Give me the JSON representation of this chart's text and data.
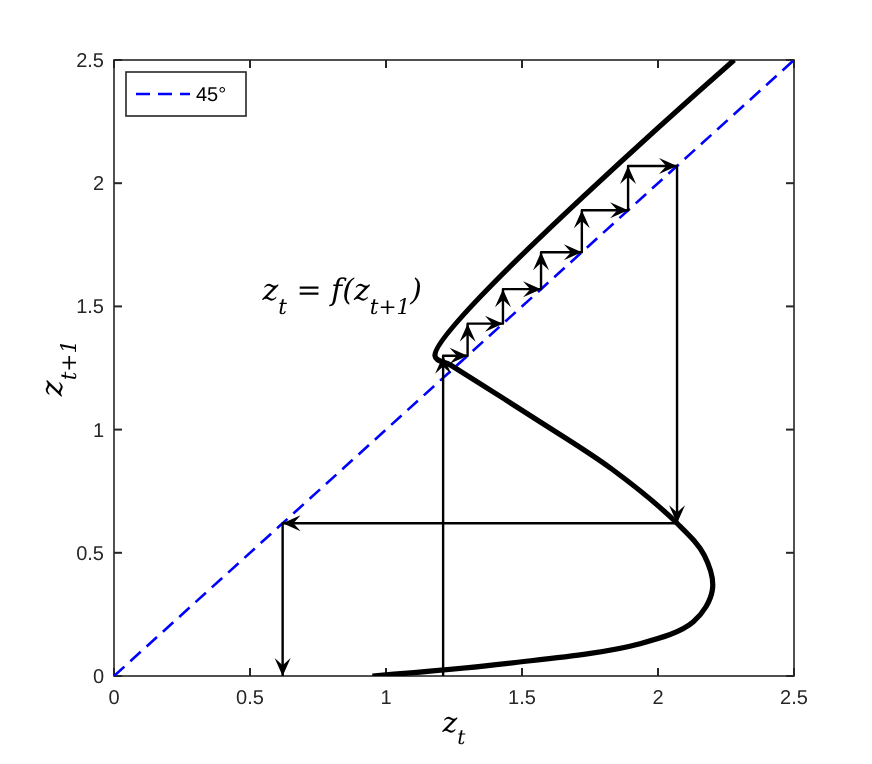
{
  "chart_data": {
    "type": "line",
    "xlabel": "z$_{t}$",
    "ylabel": "z$_{t+1}$",
    "xlim": [
      0,
      2.5
    ],
    "ylim": [
      0,
      2.5
    ],
    "xticks": [
      0,
      0.5,
      1,
      1.5,
      2,
      2.5
    ],
    "yticks": [
      0,
      0.5,
      1,
      1.5,
      2,
      2.5
    ],
    "legend": "top left",
    "grid": false,
    "series": [
      {
        "name": "45°",
        "color": "#0000ff",
        "line_style": "dashed",
        "x": [
          0,
          2.5
        ],
        "values": [
          0,
          2.5
        ]
      },
      {
        "color": "#000000",
        "line_style": "solid",
        "x": [
          0.95,
          1.44,
          1.93,
          2.13,
          2.2,
          2.17,
          2.07,
          1.83,
          1.54,
          1.24,
          1.18,
          2.28
        ],
        "values": [
          0,
          0.05,
          0.13,
          0.22,
          0.35,
          0.49,
          0.62,
          0.84,
          1.05,
          1.26,
          1.3,
          2.5
        ]
      },
      {
        "color": "#000000",
        "line_style": "solid",
        "x": [
          1.21,
          1.21,
          1.3,
          1.3,
          1.43,
          1.43,
          1.57,
          1.57,
          1.72,
          1.72,
          1.89,
          1.89,
          2.07,
          2.07,
          0.62,
          0.62
        ],
        "values": [
          0,
          1.3,
          1.3,
          1.43,
          1.43,
          1.57,
          1.57,
          1.72,
          1.72,
          1.89,
          1.89,
          2.07,
          2.07,
          0.62,
          0.62,
          0
        ]
      }
    ],
    "annotations": [
      "z$_{t}$ = f(z$_{t+1}$)"
    ]
  }
}
